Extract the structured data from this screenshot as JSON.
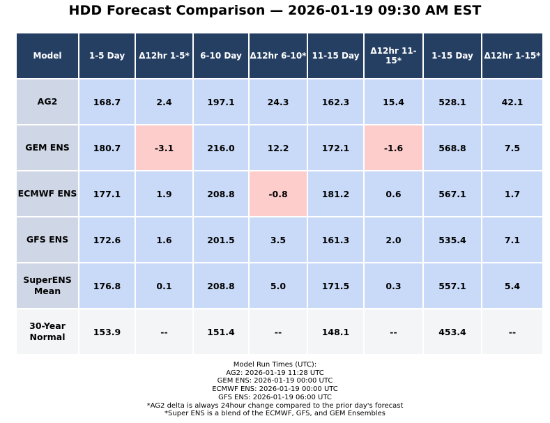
{
  "title": "HDD Forecast Comparison — 2026-01-19 09:30 AM EST",
  "colors": {
    "header_bg": "#253f63",
    "model_cell_bg": "#cfd7e6",
    "value_cell_bg": "#c9daf8",
    "negative_delta_bg": "#fdcdcc",
    "normal_row_bg": "#f3f5f7"
  },
  "chart_data": {
    "type": "table",
    "title": "HDD Forecast Comparison — 2026-01-19 09:30 AM EST",
    "columns": [
      "Model",
      "1-5 Day",
      "Δ12hr 1-5*",
      "6-10 Day",
      "Δ12hr 6-10*",
      "11-15 Day",
      "Δ12hr 11-15*",
      "1-15 Day",
      "Δ12hr 1-15*"
    ],
    "rows": [
      {
        "model": "AG2",
        "values": [
          "168.7",
          "2.4",
          "197.1",
          "24.3",
          "162.3",
          "15.4",
          "528.1",
          "42.1"
        ]
      },
      {
        "model": "GEM ENS",
        "values": [
          "180.7",
          "-3.1",
          "216.0",
          "12.2",
          "172.1",
          "-1.6",
          "568.8",
          "7.5"
        ]
      },
      {
        "model": "ECMWF ENS",
        "values": [
          "177.1",
          "1.9",
          "208.8",
          "-0.8",
          "181.2",
          "0.6",
          "567.1",
          "1.7"
        ]
      },
      {
        "model": "GFS ENS",
        "values": [
          "172.6",
          "1.6",
          "201.5",
          "3.5",
          "161.3",
          "2.0",
          "535.4",
          "7.1"
        ]
      },
      {
        "model": "SuperENS Mean",
        "values": [
          "176.8",
          "0.1",
          "208.8",
          "5.0",
          "171.5",
          "0.3",
          "557.1",
          "5.4"
        ]
      },
      {
        "model": "30-Year Normal",
        "values": [
          "153.9",
          "--",
          "151.4",
          "--",
          "148.1",
          "--",
          "453.4",
          "--"
        ]
      }
    ]
  },
  "footer": [
    "Model Run Times (UTC):",
    "AG2: 2026-01-19 11:28 UTC",
    "GEM ENS: 2026-01-19 00:00 UTC",
    "ECMWF ENS: 2026-01-19 00:00 UTC",
    "GFS ENS: 2026-01-19 06:00 UTC",
    "*AG2 delta is always 24hour change compared to the prior day's forecast",
    "*Super ENS is a blend of the ECMWF, GFS, and GEM Ensembles"
  ]
}
